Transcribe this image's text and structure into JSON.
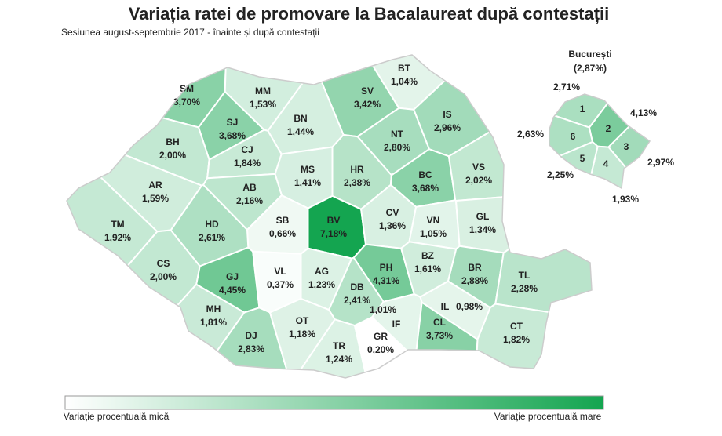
{
  "title": "Variația ratei de promovare la Bacalaureat după contestații",
  "subtitle": "Sesiunea august-septembrie 2017 - înainte și după contestații",
  "counties": [
    {
      "code": "SM",
      "value": 3.7,
      "label": "3,70%"
    },
    {
      "code": "MM",
      "value": 1.53,
      "label": "1,53%"
    },
    {
      "code": "BT",
      "value": 1.04,
      "label": "1,04%"
    },
    {
      "code": "SV",
      "value": 3.42,
      "label": "3,42%"
    },
    {
      "code": "BN",
      "value": 1.44,
      "label": "1,44%"
    },
    {
      "code": "SJ",
      "value": 3.68,
      "label": "3,68%"
    },
    {
      "code": "IS",
      "value": 2.96,
      "label": "2,96%"
    },
    {
      "code": "BH",
      "value": 2.0,
      "label": "2,00%"
    },
    {
      "code": "CJ",
      "value": 1.84,
      "label": "1,84%"
    },
    {
      "code": "NT",
      "value": 2.8,
      "label": "2,80%"
    },
    {
      "code": "MS",
      "value": 1.41,
      "label": "1,41%"
    },
    {
      "code": "HR",
      "value": 2.38,
      "label": "2,38%"
    },
    {
      "code": "BC",
      "value": 3.68,
      "label": "3,68%"
    },
    {
      "code": "VS",
      "value": 2.02,
      "label": "2,02%"
    },
    {
      "code": "AR",
      "value": 1.59,
      "label": "1,59%"
    },
    {
      "code": "AB",
      "value": 2.16,
      "label": "2,16%"
    },
    {
      "code": "SB",
      "value": 0.66,
      "label": "0,66%"
    },
    {
      "code": "BV",
      "value": 7.18,
      "label": "7,18%"
    },
    {
      "code": "CV",
      "value": 1.36,
      "label": "1,36%"
    },
    {
      "code": "VN",
      "value": 1.05,
      "label": "1,05%"
    },
    {
      "code": "GL",
      "value": 1.34,
      "label": "1,34%"
    },
    {
      "code": "TM",
      "value": 1.92,
      "label": "1,92%"
    },
    {
      "code": "HD",
      "value": 2.61,
      "label": "2,61%"
    },
    {
      "code": "CS",
      "value": 2.0,
      "label": "2,00%"
    },
    {
      "code": "GJ",
      "value": 4.45,
      "label": "4,45%"
    },
    {
      "code": "VL",
      "value": 0.37,
      "label": "0,37%"
    },
    {
      "code": "AG",
      "value": 1.23,
      "label": "1,23%"
    },
    {
      "code": "PH",
      "value": 4.31,
      "label": "4,31%"
    },
    {
      "code": "BZ",
      "value": 1.61,
      "label": "1,61%"
    },
    {
      "code": "BR",
      "value": 2.88,
      "label": "2,88%"
    },
    {
      "code": "TL",
      "value": 2.28,
      "label": "2,28%"
    },
    {
      "code": "DB",
      "value": 2.41,
      "label": "2,41%"
    },
    {
      "code": "MH",
      "value": 1.81,
      "label": "1,81%"
    },
    {
      "code": "DJ",
      "value": 2.83,
      "label": "2,83%"
    },
    {
      "code": "OT",
      "value": 1.18,
      "label": "1,18%"
    },
    {
      "code": "TR",
      "value": 1.24,
      "label": "1,24%"
    },
    {
      "code": "GR",
      "value": 0.2,
      "label": "0,20%"
    },
    {
      "code": "IF",
      "value": 1.01,
      "label": "1,01%"
    },
    {
      "code": "CL",
      "value": 3.73,
      "label": "3,73%"
    },
    {
      "code": "IL",
      "value": 0.98,
      "label": "0,98%"
    },
    {
      "code": "CT",
      "value": 1.82,
      "label": "1,82%"
    }
  ],
  "bucharest": {
    "name": "București",
    "label": "(2,87%)",
    "sectors": [
      {
        "code": "1",
        "value": 2.71,
        "label": "2,71%"
      },
      {
        "code": "2",
        "value": 4.13,
        "label": "4,13%"
      },
      {
        "code": "3",
        "value": 2.97,
        "label": "2,97%"
      },
      {
        "code": "4",
        "value": 1.93,
        "label": "1,93%"
      },
      {
        "code": "5",
        "value": 2.25,
        "label": "2,25%"
      },
      {
        "code": "6",
        "value": 2.63,
        "label": "2,63%"
      }
    ]
  },
  "legend": {
    "low": "Variație procentuală mică",
    "high": "Variație procentuală mare",
    "colors": [
      "#ffffff",
      "#14a550"
    ]
  }
}
